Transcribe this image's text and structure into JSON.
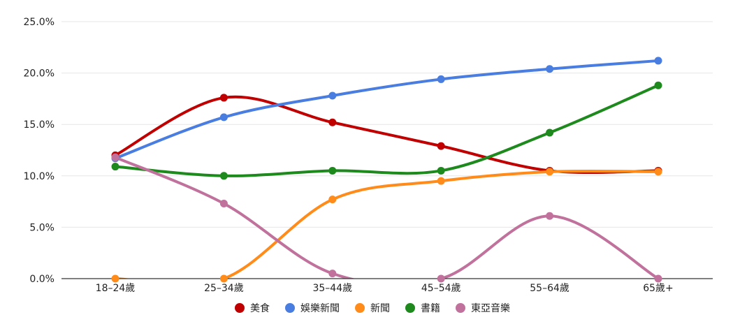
{
  "chart_data": {
    "type": "line",
    "title": "",
    "xlabel": "",
    "ylabel": "",
    "categories": [
      "18–24歲",
      "25–34歲",
      "35–44歲",
      "45–54歲",
      "55–64歲",
      "65歲+"
    ],
    "ylim": [
      0,
      25
    ],
    "yticks": [
      "0.0%",
      "5.0%",
      "10.0%",
      "15.0%",
      "20.0%",
      "25.0%"
    ],
    "grid": true,
    "legend_position": "bottom",
    "series": [
      {
        "name": "美食",
        "color": "#c00000",
        "values": [
          12.0,
          17.6,
          15.2,
          12.9,
          10.5,
          10.5
        ]
      },
      {
        "name": "娛樂新聞",
        "color": "#4a7de0",
        "values": [
          11.7,
          15.7,
          17.8,
          19.4,
          20.4,
          21.2
        ]
      },
      {
        "name": "新聞",
        "color": "#ff8c1a",
        "values": [
          0.0,
          0.0,
          7.7,
          9.5,
          10.4,
          10.4
        ]
      },
      {
        "name": "書籍",
        "color": "#1e8a1e",
        "values": [
          10.9,
          10.0,
          10.5,
          10.5,
          14.2,
          18.8
        ]
      },
      {
        "name": "東亞音樂",
        "color": "#c0719c",
        "values": [
          11.8,
          7.3,
          0.5,
          0.0,
          6.1,
          0.0
        ]
      }
    ]
  }
}
